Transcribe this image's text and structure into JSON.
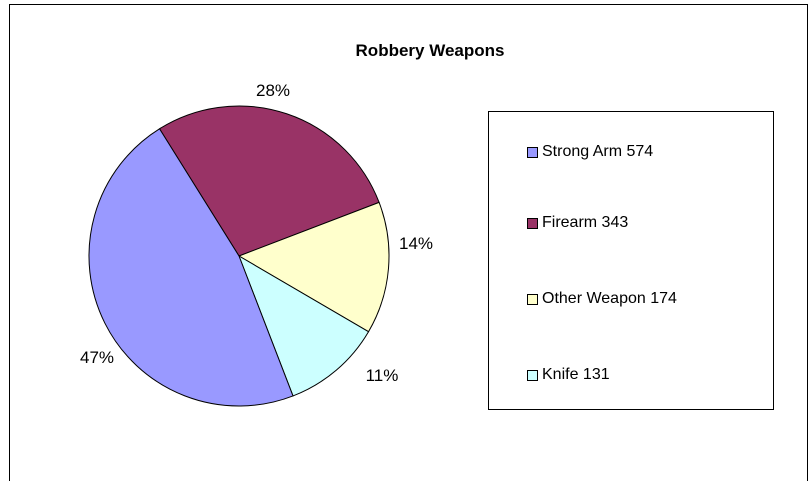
{
  "chart_data": {
    "type": "pie",
    "title": "Robbery Weapons",
    "slices": [
      {
        "name": "Strong Arm",
        "value": 574,
        "percent_label": "47%",
        "color": "#9999ff"
      },
      {
        "name": "Firearm",
        "value": 343,
        "percent_label": "28%",
        "color": "#993366"
      },
      {
        "name": "Other Weapon",
        "value": 174,
        "percent_label": "14%",
        "color": "#ffffcc"
      },
      {
        "name": "Knife",
        "value": 131,
        "percent_label": "11%",
        "color": "#ccffff"
      }
    ],
    "legend": {
      "placement": "right",
      "entries": [
        "Strong Arm  574",
        "Firearm  343",
        "Other Weapon  174",
        "Knife  131"
      ]
    }
  }
}
